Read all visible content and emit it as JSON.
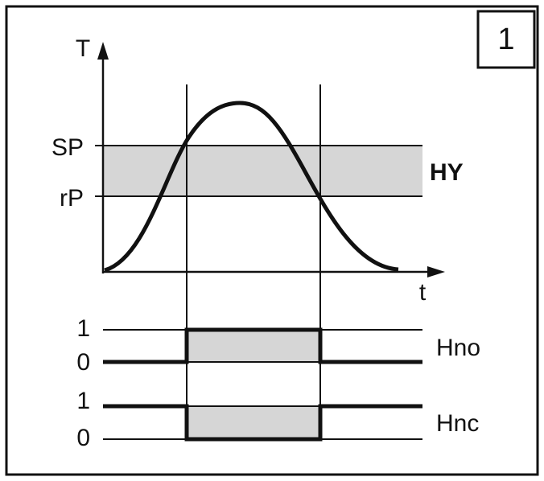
{
  "badge": "1",
  "axes": {
    "y_label": "T",
    "x_label": "t"
  },
  "levels": {
    "sp": "SP",
    "rp": "rP"
  },
  "hysteresis": "HY",
  "outputs": [
    {
      "high": "1",
      "low": "0",
      "name": "Hno"
    },
    {
      "high": "1",
      "low": "0",
      "name": "Hnc"
    }
  ]
}
